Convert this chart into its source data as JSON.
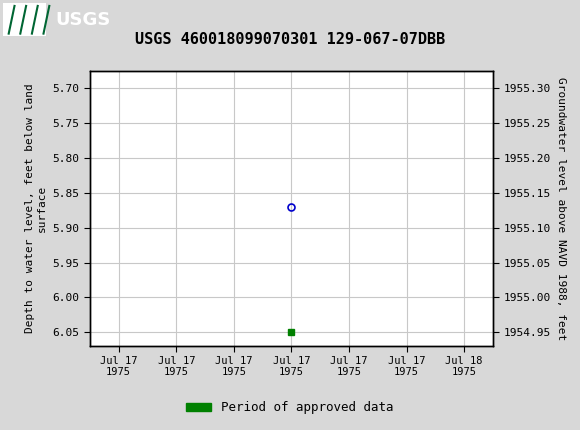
{
  "title": "USGS 460018099070301 129-067-07DBB",
  "ylabel_left": "Depth to water level, feet below land\nsurface",
  "ylabel_right": "Groundwater level above NAVD 1988, feet",
  "ylim_left": [
    6.07,
    5.675
  ],
  "ylim_right": [
    1954.93,
    1955.325
  ],
  "yticks_left": [
    5.7,
    5.75,
    5.8,
    5.85,
    5.9,
    5.95,
    6.0,
    6.05
  ],
  "yticks_right": [
    1955.3,
    1955.25,
    1955.2,
    1955.15,
    1955.1,
    1955.05,
    1955.0,
    1954.95
  ],
  "blue_point_x": 3,
  "blue_point_y": 5.87,
  "green_point_x": 3,
  "green_point_y": 6.05,
  "xtick_positions": [
    0,
    1,
    2,
    3,
    4,
    5,
    6
  ],
  "xtick_labels": [
    "Jul 17\n1975",
    "Jul 17\n1975",
    "Jul 17\n1975",
    "Jul 17\n1975",
    "Jul 17\n1975",
    "Jul 17\n1975",
    "Jul 18\n1975"
  ],
  "xlim": [
    -0.5,
    6.5
  ],
  "header_color": "#006633",
  "bg_color": "#d8d8d8",
  "plot_bg_color": "#ffffff",
  "grid_color": "#c8c8c8",
  "legend_label": "Period of approved data",
  "legend_color": "#008000",
  "title_fontsize": 11,
  "tick_fontsize": 8,
  "ylabel_fontsize": 8
}
